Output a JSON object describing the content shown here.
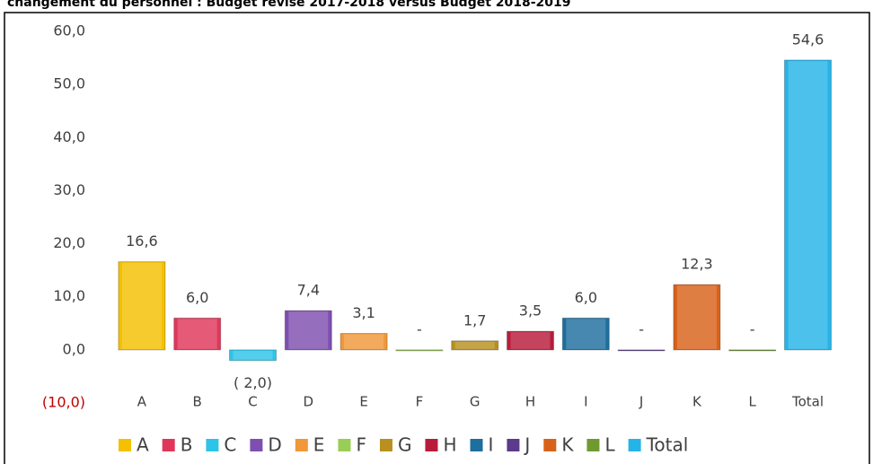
{
  "chart_data": {
    "type": "bar",
    "title": "changement du personnel : Budget révisé 2017-2018 versus Budget 2018-2019",
    "categories": [
      "A",
      "B",
      "C",
      "D",
      "E",
      "F",
      "G",
      "H",
      "I",
      "J",
      "K",
      "L",
      "Total"
    ],
    "values": [
      16.6,
      6.0,
      -2.0,
      7.4,
      3.1,
      0,
      1.7,
      3.5,
      6.0,
      0,
      12.3,
      0,
      54.6
    ],
    "value_labels": [
      "16,6",
      "6,0",
      "( 2,0)",
      "7,4",
      "3,1",
      "-",
      "1,7",
      "3,5",
      "6,0",
      "-",
      "12,3",
      "-",
      "54,6"
    ],
    "colors": [
      "#f5c000",
      "#e0365a",
      "#2ec4e8",
      "#7e4fb0",
      "#f0983a",
      "#9acd55",
      "#b8901f",
      "#b81c3a",
      "#1e6e9e",
      "#5c3a8c",
      "#d8621a",
      "#6f9a30",
      "#25b4e8"
    ],
    "ylim": [
      -10,
      60
    ],
    "yticks": [
      {
        "value": -10,
        "label": "(10,0)"
      },
      {
        "value": 0,
        "label": "0,0"
      },
      {
        "value": 10,
        "label": "10,0"
      },
      {
        "value": 20,
        "label": "20,0"
      },
      {
        "value": 30,
        "label": "30,0"
      },
      {
        "value": 40,
        "label": "40,0"
      },
      {
        "value": 50,
        "label": "50,0"
      },
      {
        "value": 60,
        "label": "60,0"
      }
    ],
    "legend": "bottom"
  }
}
